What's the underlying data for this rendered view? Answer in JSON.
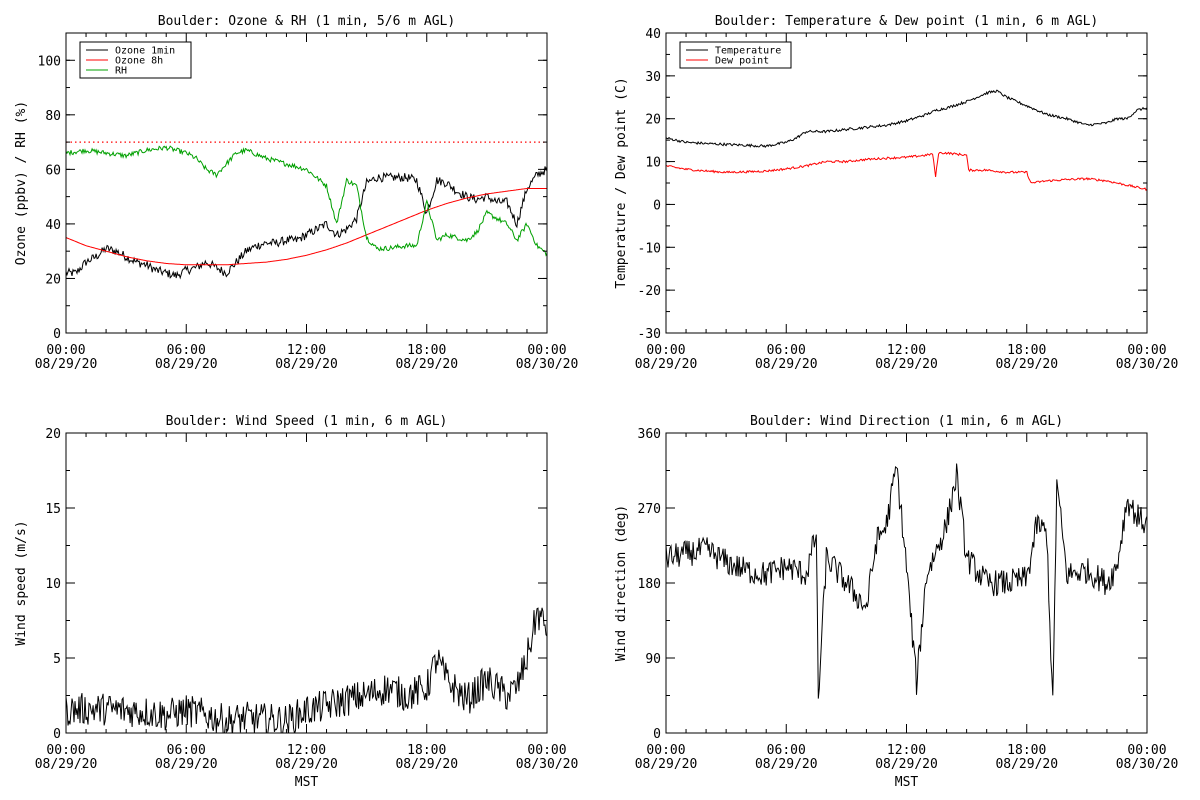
{
  "chart_data": [
    {
      "type": "line",
      "title": "Boulder: Ozone & RH (1 min, 5/6 m AGL)",
      "ylabel": "Ozone (ppbv) / RH (%)",
      "xlabel": "",
      "xlim": [
        0,
        24
      ],
      "ylim": [
        0,
        110
      ],
      "yticks": [
        0,
        20,
        40,
        60,
        80,
        100
      ],
      "x_tick_labels": [
        [
          "00:00",
          "08/29/20"
        ],
        [
          "06:00",
          "08/29/20"
        ],
        [
          "12:00",
          "08/29/20"
        ],
        [
          "18:00",
          "08/29/20"
        ],
        [
          "00:00",
          "08/30/20"
        ]
      ],
      "legend_position": "top-left",
      "reference_line": {
        "y": 70,
        "color": "#ff0000",
        "style": "dotted"
      },
      "series": [
        {
          "name": "Ozone 1min",
          "color": "#000000",
          "noise": 1.6,
          "points": [
            [
              0,
              22
            ],
            [
              0.5,
              22
            ],
            [
              1,
              26
            ],
            [
              1.5,
              28
            ],
            [
              2,
              31
            ],
            [
              2.5,
              30
            ],
            [
              3,
              28
            ],
            [
              3.5,
              26
            ],
            [
              4,
              25
            ],
            [
              4.5,
              23
            ],
            [
              5,
              22
            ],
            [
              5.5,
              21
            ],
            [
              6,
              23
            ],
            [
              6.5,
              24
            ],
            [
              7,
              26
            ],
            [
              7.5,
              24
            ],
            [
              8,
              22
            ],
            [
              8.5,
              26
            ],
            [
              9,
              30
            ],
            [
              9.5,
              32
            ],
            [
              10,
              33
            ],
            [
              10.5,
              33
            ],
            [
              11,
              34
            ],
            [
              11.5,
              34
            ],
            [
              12,
              36
            ],
            [
              12.5,
              38
            ],
            [
              13,
              40
            ],
            [
              13.5,
              36
            ],
            [
              14,
              38
            ],
            [
              14.5,
              42
            ],
            [
              15,
              55
            ],
            [
              15.5,
              57
            ],
            [
              16,
              57
            ],
            [
              16.5,
              57
            ],
            [
              17,
              57
            ],
            [
              17.5,
              56
            ],
            [
              18,
              44
            ],
            [
              18.5,
              56
            ],
            [
              19,
              55
            ],
            [
              19.5,
              52
            ],
            [
              20,
              50
            ],
            [
              20.5,
              49
            ],
            [
              21,
              50
            ],
            [
              21.5,
              48
            ],
            [
              22,
              48
            ],
            [
              22.5,
              40
            ],
            [
              23,
              53
            ],
            [
              23.5,
              58
            ],
            [
              24,
              60
            ]
          ]
        },
        {
          "name": "Ozone 8h",
          "color": "#ff0000",
          "noise": 0,
          "points": [
            [
              0,
              35
            ],
            [
              1,
              32
            ],
            [
              2,
              30
            ],
            [
              3,
              28
            ],
            [
              4,
              26.5
            ],
            [
              5,
              25.5
            ],
            [
              6,
              25
            ],
            [
              7,
              25
            ],
            [
              8,
              25
            ],
            [
              9,
              25.5
            ],
            [
              10,
              26
            ],
            [
              11,
              27
            ],
            [
              12,
              28.5
            ],
            [
              13,
              30.5
            ],
            [
              14,
              33
            ],
            [
              15,
              36
            ],
            [
              16,
              39
            ],
            [
              17,
              42
            ],
            [
              18,
              45
            ],
            [
              19,
              47.5
            ],
            [
              20,
              49.5
            ],
            [
              21,
              51
            ],
            [
              22,
              52
            ],
            [
              23,
              53
            ],
            [
              24,
              53
            ]
          ]
        },
        {
          "name": "RH",
          "color": "#00a000",
          "noise": 0.9,
          "points": [
            [
              0,
              66
            ],
            [
              1,
              67
            ],
            [
              2,
              66
            ],
            [
              3,
              65
            ],
            [
              4,
              67
            ],
            [
              5,
              68
            ],
            [
              6,
              66
            ],
            [
              6.5,
              64
            ],
            [
              7,
              60
            ],
            [
              7.5,
              58
            ],
            [
              8,
              62
            ],
            [
              8.5,
              66
            ],
            [
              9,
              67
            ],
            [
              10,
              64
            ],
            [
              11,
              62
            ],
            [
              12,
              60
            ],
            [
              12.5,
              57
            ],
            [
              13,
              54
            ],
            [
              13.5,
              40
            ],
            [
              14,
              56
            ],
            [
              14.5,
              54
            ],
            [
              15,
              35
            ],
            [
              15.5,
              31
            ],
            [
              16,
              31
            ],
            [
              17,
              32
            ],
            [
              17.5,
              32
            ],
            [
              18,
              48
            ],
            [
              18.5,
              34
            ],
            [
              19,
              36
            ],
            [
              20,
              34
            ],
            [
              20.5,
              37
            ],
            [
              21,
              44
            ],
            [
              22,
              40
            ],
            [
              22.5,
              34
            ],
            [
              23,
              40
            ],
            [
              23.5,
              32
            ],
            [
              24,
              29
            ]
          ]
        }
      ]
    },
    {
      "type": "line",
      "title": "Boulder: Temperature & Dew point (1 min, 6 m AGL)",
      "ylabel": "Temperature / Dew point (C)",
      "xlabel": "",
      "xlim": [
        0,
        24
      ],
      "ylim": [
        -30,
        40
      ],
      "yticks": [
        -30,
        -20,
        -10,
        0,
        10,
        20,
        30,
        40
      ],
      "x_tick_labels": [
        [
          "00:00",
          "08/29/20"
        ],
        [
          "06:00",
          "08/29/20"
        ],
        [
          "12:00",
          "08/29/20"
        ],
        [
          "18:00",
          "08/29/20"
        ],
        [
          "00:00",
          "08/30/20"
        ]
      ],
      "legend_position": "top-left",
      "series": [
        {
          "name": "Temperature",
          "color": "#000000",
          "noise": 0.3,
          "points": [
            [
              0,
              15.5
            ],
            [
              1,
              14.5
            ],
            [
              2,
              14.2
            ],
            [
              3,
              14
            ],
            [
              4,
              13.8
            ],
            [
              5,
              13.6
            ],
            [
              6,
              14.5
            ],
            [
              6.5,
              15.5
            ],
            [
              7,
              17
            ],
            [
              8,
              17
            ],
            [
              9,
              17.5
            ],
            [
              10,
              18
            ],
            [
              11,
              18.5
            ],
            [
              12,
              19.5
            ],
            [
              13,
              21
            ],
            [
              13.5,
              22
            ],
            [
              14,
              22.5
            ],
            [
              15,
              24
            ],
            [
              16,
              26
            ],
            [
              16.5,
              26.5
            ],
            [
              17,
              25
            ],
            [
              18,
              23
            ],
            [
              19,
              21
            ],
            [
              20,
              20
            ],
            [
              21,
              18.5
            ],
            [
              22,
              19
            ],
            [
              22.5,
              20
            ],
            [
              23,
              20
            ],
            [
              23.5,
              22
            ],
            [
              24,
              22.5
            ]
          ]
        },
        {
          "name": "Dew point",
          "color": "#ff0000",
          "noise": 0.25,
          "points": [
            [
              0,
              9
            ],
            [
              1,
              8.2
            ],
            [
              2,
              7.8
            ],
            [
              3,
              7.5
            ],
            [
              4,
              7.6
            ],
            [
              5,
              7.8
            ],
            [
              6,
              8.3
            ],
            [
              7,
              9
            ],
            [
              7.5,
              9.5
            ],
            [
              8,
              10
            ],
            [
              9,
              10
            ],
            [
              10,
              10.5
            ],
            [
              11,
              10.8
            ],
            [
              12,
              11
            ],
            [
              13,
              11.5
            ],
            [
              13.3,
              11.8
            ],
            [
              13.45,
              6.5
            ],
            [
              13.6,
              12
            ],
            [
              14,
              12
            ],
            [
              15,
              11.5
            ],
            [
              15.1,
              8
            ],
            [
              16,
              8
            ],
            [
              17,
              7.5
            ],
            [
              18,
              7.5
            ],
            [
              18.2,
              5
            ],
            [
              19,
              5.5
            ],
            [
              20,
              5.8
            ],
            [
              21,
              6
            ],
            [
              22,
              5.5
            ],
            [
              23,
              4.5
            ],
            [
              24,
              3.5
            ]
          ]
        }
      ]
    },
    {
      "type": "line",
      "title": "Boulder: Wind Speed (1 min, 6 m AGL)",
      "ylabel": "Wind speed (m/s)",
      "xlabel": "MST",
      "xlim": [
        0,
        24
      ],
      "ylim": [
        0,
        20
      ],
      "yticks": [
        0,
        5,
        10,
        15,
        20
      ],
      "x_tick_labels": [
        [
          "00:00",
          "08/29/20"
        ],
        [
          "06:00",
          "08/29/20"
        ],
        [
          "12:00",
          "08/29/20"
        ],
        [
          "18:00",
          "08/29/20"
        ],
        [
          "00:00",
          "08/30/20"
        ]
      ],
      "series": [
        {
          "color": "#000000",
          "noise": 1.1,
          "points": [
            [
              0,
              1.5
            ],
            [
              1,
              1.6
            ],
            [
              2,
              1.6
            ],
            [
              3,
              1.5
            ],
            [
              4,
              1.4
            ],
            [
              5,
              1.2
            ],
            [
              6,
              1.5
            ],
            [
              7,
              1.2
            ],
            [
              8,
              0.8
            ],
            [
              9,
              1
            ],
            [
              10,
              0.9
            ],
            [
              11,
              0.8
            ],
            [
              12,
              1.5
            ],
            [
              13,
              1.8
            ],
            [
              14,
              2.2
            ],
            [
              15,
              2.5
            ],
            [
              16,
              3
            ],
            [
              17,
              2.5
            ],
            [
              18,
              3
            ],
            [
              18.5,
              5
            ],
            [
              19,
              3.5
            ],
            [
              20,
              2.2
            ],
            [
              21,
              3.5
            ],
            [
              22,
              2.5
            ],
            [
              22.5,
              3
            ],
            [
              23,
              5
            ],
            [
              23.5,
              8
            ],
            [
              24,
              7
            ]
          ]
        }
      ]
    },
    {
      "type": "line",
      "title": "Boulder: Wind Direction (1 min, 6 m AGL)",
      "ylabel": "Wind direction (deg)",
      "xlabel": "MST",
      "xlim": [
        0,
        24
      ],
      "ylim": [
        0,
        360
      ],
      "yticks": [
        0,
        90,
        180,
        270,
        360
      ],
      "x_tick_labels": [
        [
          "00:00",
          "08/29/20"
        ],
        [
          "06:00",
          "08/29/20"
        ],
        [
          "12:00",
          "08/29/20"
        ],
        [
          "18:00",
          "08/29/20"
        ],
        [
          "00:00",
          "08/30/20"
        ]
      ],
      "series": [
        {
          "color": "#000000",
          "noise": 16,
          "points": [
            [
              0,
              210
            ],
            [
              1,
              215
            ],
            [
              2,
              220
            ],
            [
              3,
              205
            ],
            [
              4,
              195
            ],
            [
              5,
              190
            ],
            [
              6,
              200
            ],
            [
              7,
              190
            ],
            [
              7.5,
              240
            ],
            [
              7.6,
              40
            ],
            [
              8,
              210
            ],
            [
              9,
              180
            ],
            [
              10,
              150
            ],
            [
              10.5,
              230
            ],
            [
              11,
              250
            ],
            [
              11.5,
              320
            ],
            [
              12,
              200
            ],
            [
              12.5,
              60
            ],
            [
              13,
              190
            ],
            [
              14,
              250
            ],
            [
              14.5,
              310
            ],
            [
              15,
              210
            ],
            [
              16,
              180
            ],
            [
              17,
              180
            ],
            [
              18,
              185
            ],
            [
              18.5,
              250
            ],
            [
              19,
              240
            ],
            [
              19.3,
              30
            ],
            [
              19.5,
              300
            ],
            [
              20,
              190
            ],
            [
              21,
              195
            ],
            [
              22,
              180
            ],
            [
              22.5,
              200
            ],
            [
              23,
              280
            ],
            [
              23.5,
              260
            ],
            [
              24,
              250
            ]
          ]
        }
      ]
    }
  ]
}
